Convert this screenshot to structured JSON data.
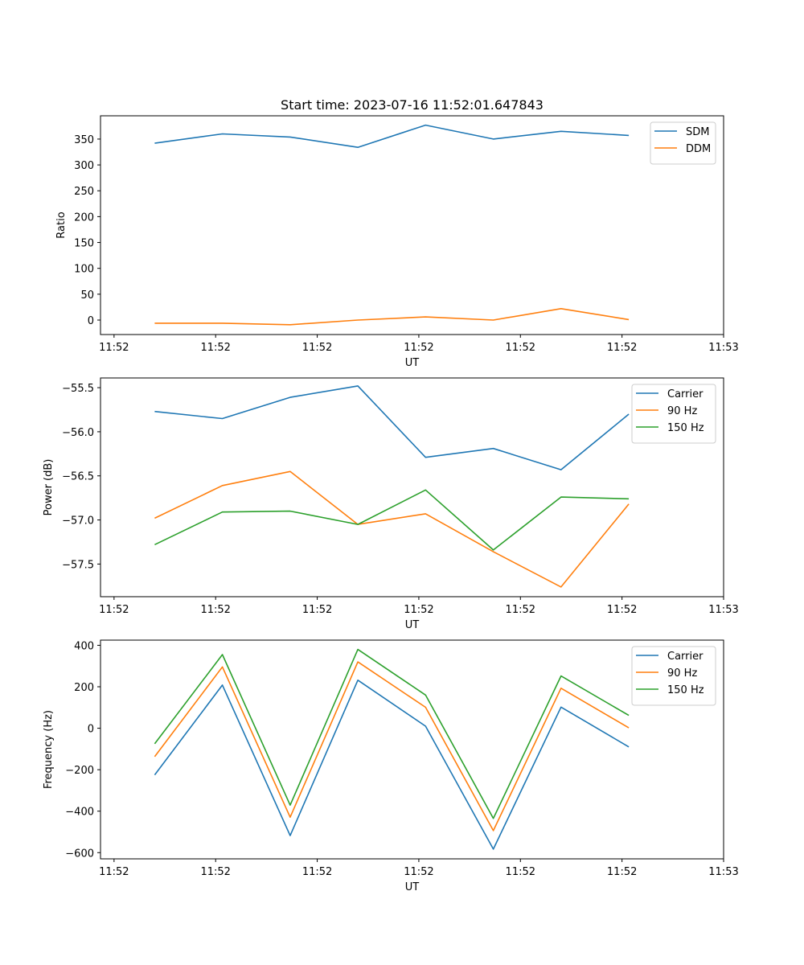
{
  "figure": {
    "title": "Start time: 2023-07-16 11:52:01.647843"
  },
  "colors": {
    "blue": "#1f77b4",
    "orange": "#ff7f0e",
    "green": "#2ca02c"
  },
  "chart_data": [
    {
      "type": "line",
      "title": "Start time: 2023-07-16 11:52:01.647843",
      "xlabel": "UT",
      "ylabel": "Ratio",
      "x": [
        1,
        2,
        3,
        4,
        5,
        6,
        7,
        8
      ],
      "xlim": [
        0.2,
        9.4
      ],
      "xticks": [
        0.4,
        1.9,
        3.4,
        4.9,
        6.4,
        7.9,
        9.4
      ],
      "xtick_labels": [
        "11:52",
        "11:52",
        "11:52",
        "11:52",
        "11:52",
        "11:52",
        "11:53"
      ],
      "ylim": [
        -28,
        395
      ],
      "yticks": [
        0,
        50,
        100,
        150,
        200,
        250,
        300,
        350
      ],
      "ytick_labels": [
        "0",
        "50",
        "100",
        "150",
        "200",
        "250",
        "300",
        "350"
      ],
      "legend_position": "top-right",
      "series": [
        {
          "name": "SDM",
          "color": "blue",
          "values": [
            342,
            360,
            354,
            334,
            377,
            350,
            365,
            357
          ]
        },
        {
          "name": "DDM",
          "color": "orange",
          "values": [
            -6,
            -6,
            -9,
            0,
            6,
            0,
            22,
            1
          ]
        }
      ]
    },
    {
      "type": "line",
      "title": "",
      "xlabel": "UT",
      "ylabel": "Power (dB)",
      "x": [
        1,
        2,
        3,
        4,
        5,
        6,
        7,
        8
      ],
      "xlim": [
        0.2,
        9.4
      ],
      "xticks": [
        0.4,
        1.9,
        3.4,
        4.9,
        6.4,
        7.9,
        9.4
      ],
      "xtick_labels": [
        "11:52",
        "11:52",
        "11:52",
        "11:52",
        "11:52",
        "11:52",
        "11:53"
      ],
      "ylim": [
        -57.87,
        -55.39
      ],
      "yticks": [
        -55.5,
        -56.0,
        -56.5,
        -57.0,
        -57.5
      ],
      "ytick_labels": [
        "−55.5",
        "−56.0",
        "−56.5",
        "−57.0",
        "−57.5"
      ],
      "legend_position": "top-right",
      "series": [
        {
          "name": "Carrier",
          "color": "blue",
          "values": [
            -55.77,
            -55.85,
            -55.61,
            -55.48,
            -56.29,
            -56.19,
            -56.43,
            -55.8
          ]
        },
        {
          "name": "90 Hz",
          "color": "orange",
          "values": [
            -56.98,
            -56.61,
            -56.45,
            -57.05,
            -56.93,
            -57.36,
            -57.76,
            -56.82
          ]
        },
        {
          "name": "150 Hz",
          "color": "green",
          "values": [
            -57.28,
            -56.91,
            -56.9,
            -57.05,
            -56.66,
            -57.34,
            -56.74,
            -56.76
          ]
        }
      ]
    },
    {
      "type": "line",
      "title": "",
      "xlabel": "UT",
      "ylabel": "Frequency (Hz)",
      "x": [
        1,
        2,
        3,
        4,
        5,
        6,
        7,
        8
      ],
      "xlim": [
        0.2,
        9.4
      ],
      "xticks": [
        0.4,
        1.9,
        3.4,
        4.9,
        6.4,
        7.9,
        9.4
      ],
      "xtick_labels": [
        "11:52",
        "11:52",
        "11:52",
        "11:52",
        "11:52",
        "11:52",
        "11:53"
      ],
      "ylim": [
        -630,
        425
      ],
      "yticks": [
        400,
        200,
        0,
        -200,
        -400,
        -600
      ],
      "ytick_labels": [
        "400",
        "200",
        "0",
        "−200",
        "−400",
        "−600"
      ],
      "legend_position": "top-right",
      "series": [
        {
          "name": "Carrier",
          "color": "blue",
          "values": [
            -225,
            208,
            -518,
            232,
            10,
            -583,
            102,
            -90
          ]
        },
        {
          "name": "90 Hz",
          "color": "orange",
          "values": [
            -137,
            296,
            -429,
            320,
            101,
            -494,
            193,
            2
          ]
        },
        {
          "name": "150 Hz",
          "color": "green",
          "values": [
            -75,
            355,
            -371,
            380,
            160,
            -435,
            252,
            62
          ]
        }
      ]
    }
  ]
}
